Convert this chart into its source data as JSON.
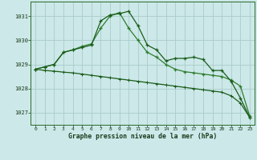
{
  "title": "Graphe pression niveau de la mer (hPa)",
  "background_color": "#cce8e8",
  "grid_color": "#aacccc",
  "line_color1": "#1a5c1a",
  "line_color2": "#2e7d2e",
  "xlim_min": -0.5,
  "xlim_max": 23.5,
  "ylim_min": 1026.5,
  "ylim_max": 1031.6,
  "yticks": [
    1027,
    1028,
    1029,
    1030,
    1031
  ],
  "xticks": [
    0,
    1,
    2,
    3,
    4,
    5,
    6,
    7,
    8,
    9,
    10,
    11,
    12,
    13,
    14,
    15,
    16,
    17,
    18,
    19,
    20,
    21,
    22,
    23
  ],
  "series1_x": [
    0,
    1,
    2,
    3,
    4,
    5,
    6,
    7,
    8,
    9,
    10,
    11,
    12,
    13,
    14,
    15,
    16,
    17,
    18,
    19,
    20,
    21,
    22,
    23
  ],
  "series1_y": [
    1028.8,
    1028.9,
    1029.0,
    1029.5,
    1029.6,
    1029.7,
    1029.8,
    1030.8,
    1031.05,
    1031.1,
    1031.2,
    1030.6,
    1029.8,
    1029.6,
    1029.15,
    1029.25,
    1029.25,
    1029.3,
    1029.2,
    1028.75,
    1028.75,
    1028.3,
    1027.6,
    1026.8
  ],
  "series2_x": [
    0,
    1,
    2,
    3,
    4,
    5,
    6,
    7,
    8,
    9,
    10,
    11,
    12,
    13,
    14,
    15,
    16,
    17,
    18,
    19,
    20,
    21,
    22,
    23
  ],
  "series2_y": [
    1028.8,
    1028.9,
    1029.0,
    1029.5,
    1029.6,
    1029.75,
    1029.85,
    1030.5,
    1031.0,
    1031.15,
    1030.5,
    1030.0,
    1029.5,
    1029.3,
    1029.0,
    1028.8,
    1028.7,
    1028.65,
    1028.6,
    1028.55,
    1028.5,
    1028.35,
    1028.1,
    1026.85
  ],
  "series3_x": [
    0,
    1,
    2,
    3,
    4,
    5,
    6,
    7,
    8,
    9,
    10,
    11,
    12,
    13,
    14,
    15,
    16,
    17,
    18,
    19,
    20,
    21,
    22,
    23
  ],
  "series3_y": [
    1028.8,
    1028.75,
    1028.72,
    1028.68,
    1028.65,
    1028.6,
    1028.55,
    1028.5,
    1028.45,
    1028.4,
    1028.35,
    1028.3,
    1028.25,
    1028.2,
    1028.15,
    1028.1,
    1028.05,
    1028.0,
    1027.95,
    1027.9,
    1027.85,
    1027.7,
    1027.4,
    1026.8
  ]
}
